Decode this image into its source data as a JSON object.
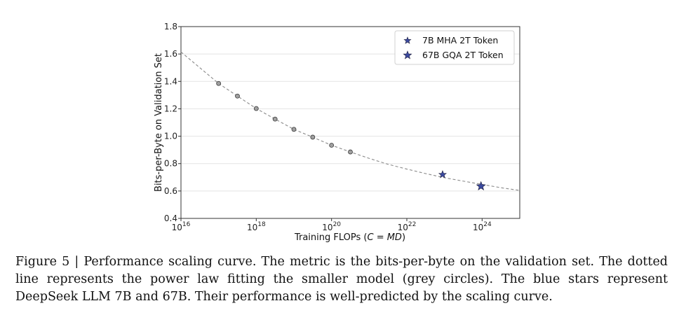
{
  "chart_data": {
    "type": "scatter",
    "xlabel_text": "Training FLOPs (",
    "xlabel_eq": "C = MD",
    "xlabel_close": ")",
    "ylabel": "Bits-per-Byte on Validation Set",
    "xscale": "log10",
    "xlim_exp": [
      16,
      25
    ],
    "ylim": [
      0.4,
      1.8
    ],
    "xtick_base": "10",
    "xtick_exponents": [
      "16",
      "18",
      "20",
      "22",
      "24"
    ],
    "yticks": [
      "0.4",
      "0.6",
      "0.8",
      "1.0",
      "1.2",
      "1.4",
      "1.6",
      "1.8"
    ],
    "grid": "horizontal",
    "fit_curve": {
      "style": "dashed",
      "color": "#8a8a8a",
      "x_exp": [
        16.0,
        17.0,
        17.5,
        18.0,
        18.5,
        19.0,
        19.5,
        20.0,
        20.5,
        21.0,
        21.5,
        22.0,
        22.5,
        23.0,
        23.5,
        24.0,
        24.5,
        25.0
      ],
      "y": [
        1.615,
        1.385,
        1.293,
        1.202,
        1.125,
        1.05,
        0.993,
        0.934,
        0.885,
        0.838,
        0.795,
        0.76,
        0.727,
        0.697,
        0.672,
        0.648,
        0.624,
        0.604
      ]
    },
    "series": [
      {
        "name": "small models",
        "marker": "circle",
        "color": "#a0a0a0",
        "x_exp": [
          17.0,
          17.5,
          18.0,
          18.5,
          19.0,
          19.5,
          20.0,
          20.5
        ],
        "y": [
          1.385,
          1.293,
          1.202,
          1.125,
          1.05,
          0.993,
          0.934,
          0.885
        ]
      },
      {
        "name": "7B MHA 2T Token",
        "marker": "star",
        "color": "#3b4aa0",
        "x_exp": [
          22.95
        ],
        "y": [
          0.72
        ]
      },
      {
        "name": "67B GQA 2T Token",
        "marker": "star",
        "color": "#3b4aa0",
        "x_exp": [
          23.97
        ],
        "y": [
          0.635
        ]
      }
    ],
    "legend": {
      "position": "top-right",
      "entries": [
        "7B MHA 2T Token",
        "67B GQA 2T Token"
      ]
    }
  },
  "caption": "Figure 5 | Performance scaling curve. The metric is the bits-per-byte on the validation set. The dotted line represents the power law fitting the smaller model (grey circles). The blue stars represent DeepSeek LLM 7B and 67B. Their performance is well-predicted by the scaling curve."
}
